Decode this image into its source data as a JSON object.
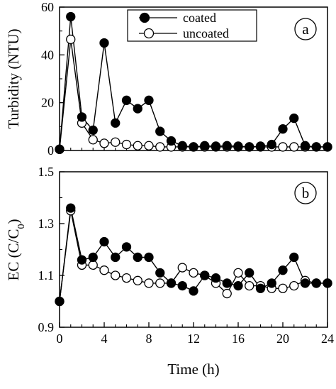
{
  "chart_data": [
    {
      "panel_label": "a",
      "type": "line",
      "ylabel": "Turbidity (NTU)",
      "ylim": [
        0,
        60
      ],
      "yticks": [
        "0",
        "20",
        "40",
        "60"
      ],
      "xlim": [
        0,
        24
      ],
      "grid": false,
      "legend": {
        "placement": "top-right",
        "entries": [
          "coated",
          "uncoated"
        ]
      },
      "series": [
        {
          "name": "coated",
          "marker": "filled-circle",
          "color": "#000000",
          "x": [
            0,
            1,
            2,
            3,
            4,
            5,
            6,
            7,
            8,
            9,
            10,
            11,
            12,
            13,
            14,
            15,
            16,
            17,
            18,
            19,
            20,
            21,
            22,
            23,
            24
          ],
          "y": [
            0.5,
            56,
            14,
            8.5,
            45,
            11.5,
            21,
            17.5,
            21,
            8,
            4,
            2,
            1.5,
            2,
            1.8,
            2,
            1.8,
            1.5,
            1.8,
            2.5,
            9,
            13.5,
            2,
            1.5,
            1.5
          ]
        },
        {
          "name": "uncoated",
          "marker": "open-circle",
          "color": "#000000",
          "x": [
            0,
            1,
            2,
            3,
            4,
            5,
            6,
            7,
            8,
            9,
            10,
            11,
            12,
            13,
            14,
            15,
            16,
            17,
            18,
            19,
            20,
            21,
            22,
            23,
            24
          ],
          "y": [
            0.5,
            46.5,
            11.5,
            4.5,
            3,
            3.5,
            2.5,
            2,
            2,
            1.5,
            1.5,
            1.5,
            1.5,
            1.5,
            1.5,
            1.5,
            1.5,
            1.5,
            1.5,
            1.5,
            1.5,
            1.5,
            1.5,
            1.5,
            1.5
          ]
        }
      ]
    },
    {
      "panel_label": "b",
      "type": "line",
      "ylabel_main": "EC (C/C",
      "ylabel_sub": "0",
      "ylabel_end": ")",
      "ylim": [
        0.9,
        1.5
      ],
      "yticks": [
        "0.9",
        "1.1",
        "1.3",
        "1.5"
      ],
      "xlabel": "Time (h)",
      "xlim": [
        0,
        24
      ],
      "xticks": [
        "0",
        "4",
        "8",
        "12",
        "16",
        "20",
        "24"
      ],
      "grid": false,
      "series": [
        {
          "name": "coated",
          "marker": "filled-circle",
          "color": "#000000",
          "x": [
            0,
            1,
            2,
            3,
            4,
            5,
            6,
            7,
            8,
            9,
            10,
            11,
            12,
            13,
            14,
            15,
            16,
            17,
            18,
            19,
            20,
            21,
            22,
            23,
            24
          ],
          "y": [
            1.0,
            1.36,
            1.16,
            1.17,
            1.23,
            1.17,
            1.21,
            1.17,
            1.17,
            1.11,
            1.07,
            1.06,
            1.04,
            1.1,
            1.09,
            1.07,
            1.06,
            1.11,
            1.05,
            1.07,
            1.12,
            1.17,
            1.07,
            1.07,
            1.07
          ]
        },
        {
          "name": "uncoated",
          "marker": "open-circle",
          "color": "#000000",
          "x": [
            0,
            1,
            2,
            3,
            4,
            5,
            6,
            7,
            8,
            9,
            10,
            11,
            12,
            13,
            14,
            15,
            16,
            17,
            18,
            19,
            20,
            21,
            22,
            23,
            24
          ],
          "y": [
            1.0,
            1.35,
            1.14,
            1.14,
            1.12,
            1.1,
            1.09,
            1.08,
            1.07,
            1.07,
            1.07,
            1.13,
            1.11,
            1.1,
            1.07,
            1.03,
            1.11,
            1.06,
            1.06,
            1.05,
            1.05,
            1.06,
            1.08,
            1.07,
            1.07
          ]
        }
      ]
    }
  ]
}
